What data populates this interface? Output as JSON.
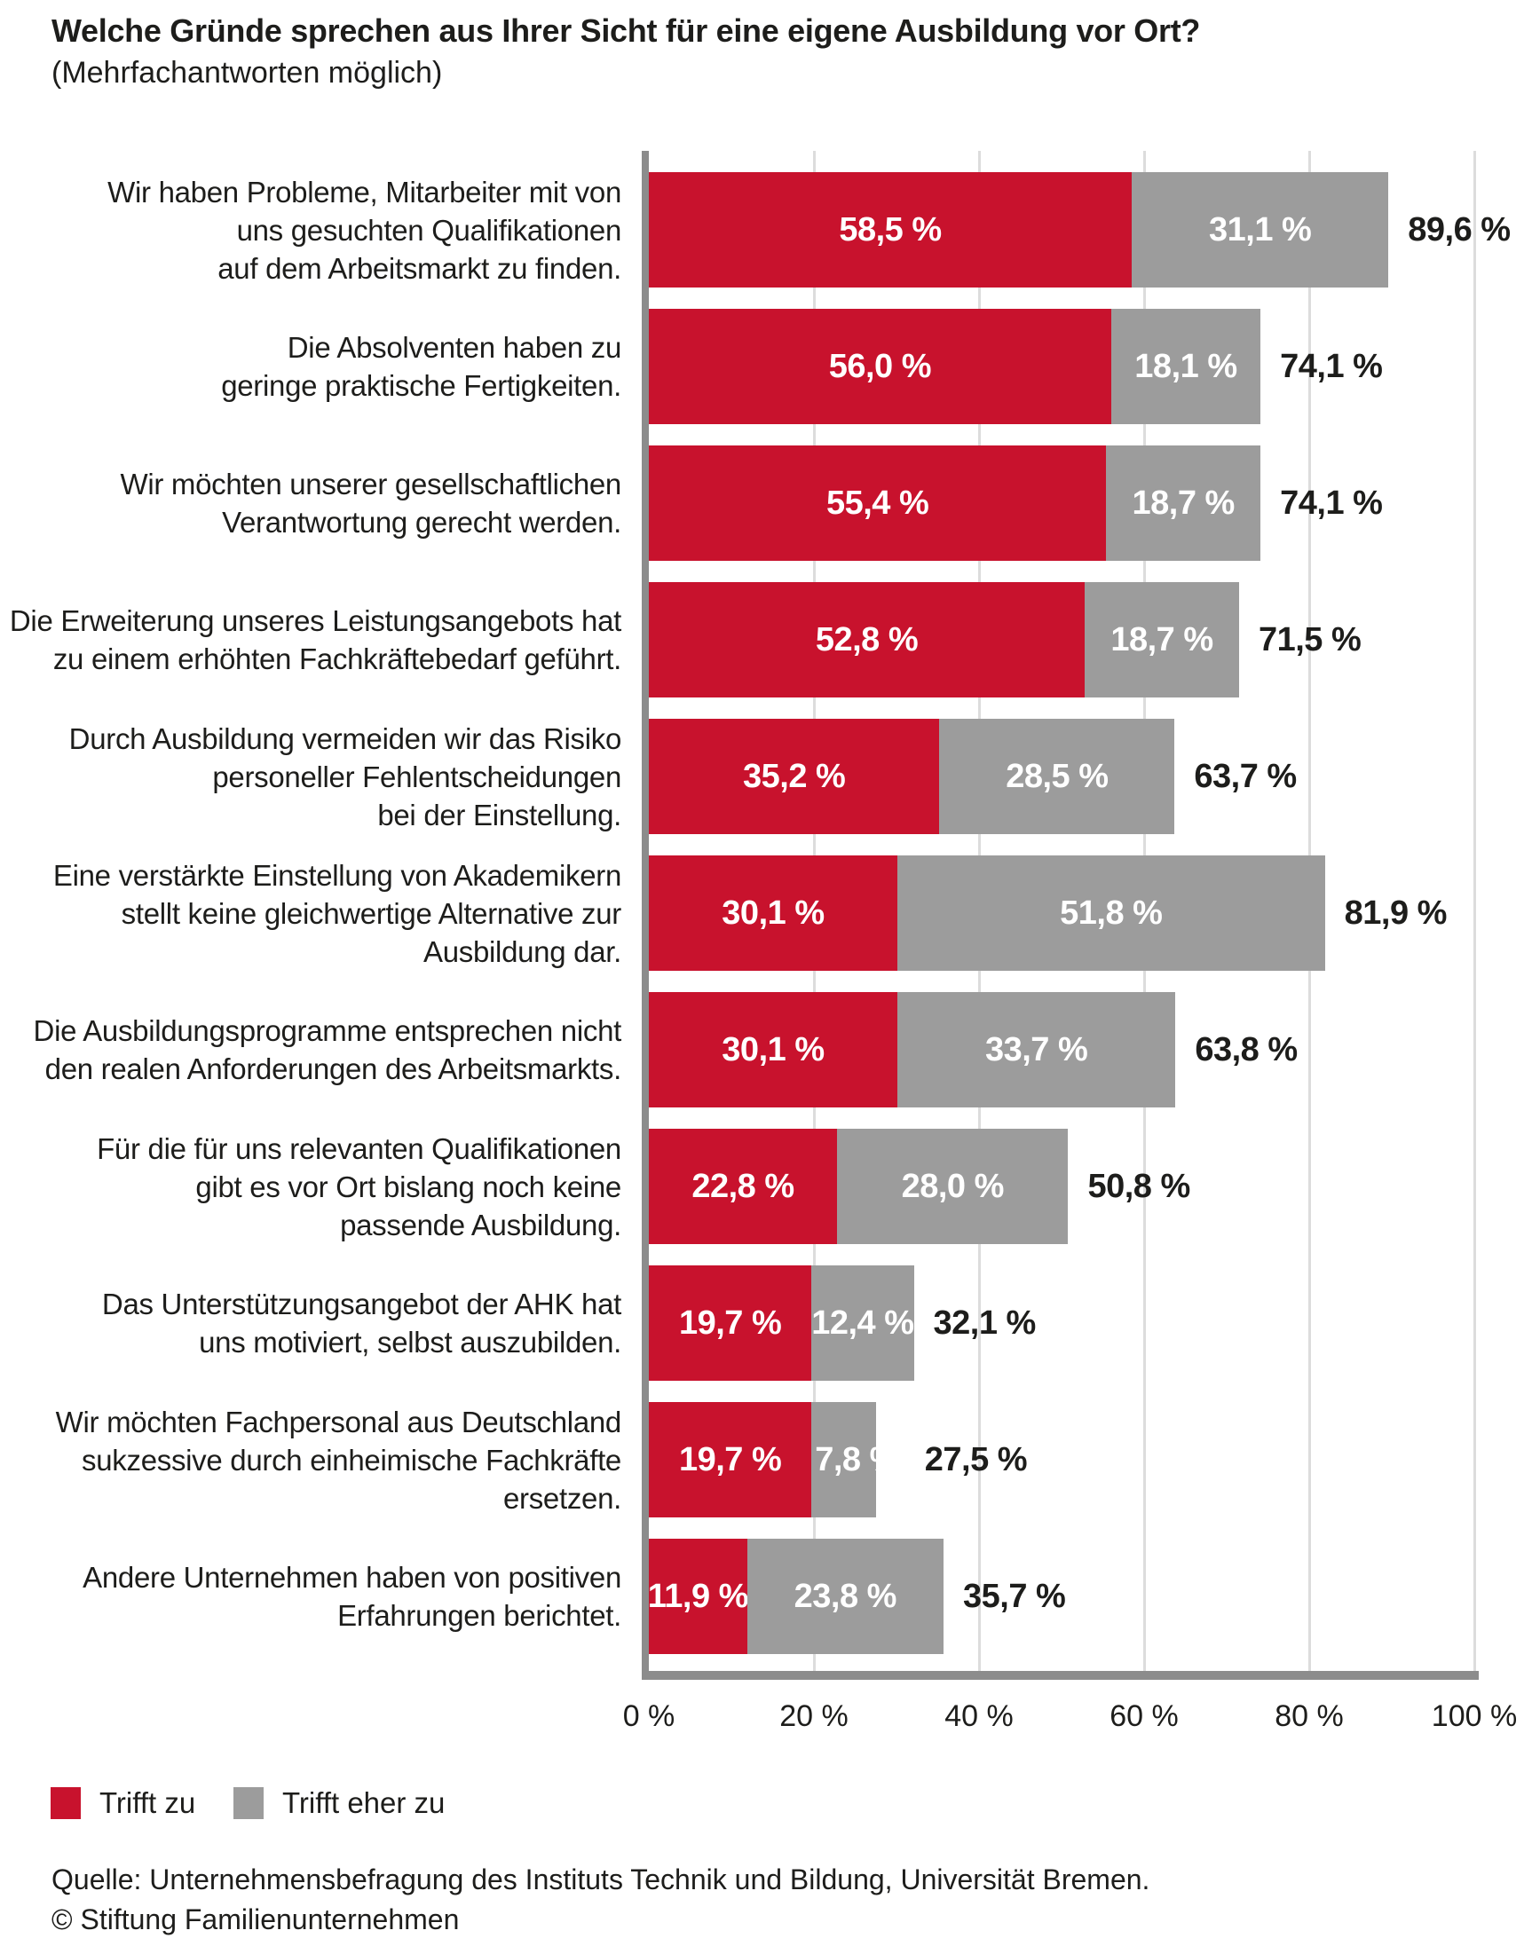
{
  "page": {
    "title": "Welche Gründe sprechen aus Ihrer Sicht für eine eigene Ausbildung vor Ort?",
    "subtitle": "(Mehrfachantworten möglich)",
    "source": "Quelle: Unternehmensbefragung des Instituts Technik und Bildung, Universität Bremen.\n© Stiftung Familienunternehmen"
  },
  "legend": [
    {
      "label": "Trifft zu",
      "color": "#c8122d"
    },
    {
      "label": "Trifft eher zu",
      "color": "#9c9c9c"
    }
  ],
  "colors": {
    "bar_red": "#c8122d",
    "bar_gray": "#9c9c9c",
    "axis": "#8c8c8c",
    "grid": "#dcdcdc",
    "text": "#1d1d1b",
    "value_text": "#ffffff"
  },
  "chart_data": {
    "type": "bar",
    "orientation": "horizontal",
    "stacked": true,
    "unit": "%",
    "xlim": [
      0,
      100
    ],
    "x_ticks": [
      "0 %",
      "20 %",
      "40 %",
      "60 %",
      "80 %",
      "100 %"
    ],
    "grid": true,
    "legend_position": "bottom",
    "categories": [
      "Wir haben Probleme, Mitarbeiter mit von\nuns gesuchten Qualifikationen\nauf dem Arbeitsmarkt zu finden.",
      "Die Absolventen haben zu\ngeringe praktische Fertigkeiten.",
      "Wir möchten unserer gesellschaftlichen\nVerantwortung gerecht werden.",
      "Die Erweiterung unseres Leistungsangebots hat\nzu einem erhöhten Fachkräftebedarf geführt.",
      "Durch Ausbildung vermeiden wir das Risiko\npersoneller Fehlentscheidungen\nbei der Einstellung.",
      "Eine verstärkte Einstellung von Akademikern\nstellt keine gleichwertige Alternative zur\nAusbildung dar.",
      "Die Ausbildungsprogramme entsprechen nicht\nden realen Anforderungen des Arbeitsmarkts.",
      "Für die für uns relevanten Qualifikationen\ngibt es vor Ort bislang noch keine\npassende Ausbildung.",
      "Das Unterstützungsangebot der AHK hat\nuns motiviert, selbst auszubilden.",
      "Wir möchten Fachpersonal aus Deutschland\nsukzessive durch einheimische Fachkräfte\nersetzen.",
      "Andere Unternehmen haben von positiven\nErfahrungen berichtet."
    ],
    "series": [
      {
        "name": "Trifft zu",
        "color": "#c8122d",
        "values": [
          58.5,
          56.0,
          55.4,
          52.8,
          35.2,
          30.1,
          30.1,
          22.8,
          19.7,
          19.7,
          11.9
        ]
      },
      {
        "name": "Trifft eher zu",
        "color": "#9c9c9c",
        "values": [
          31.1,
          18.1,
          18.7,
          18.7,
          28.5,
          51.8,
          33.7,
          28.0,
          12.4,
          7.8,
          23.8
        ]
      }
    ],
    "totals": [
      89.6,
      74.1,
      74.1,
      71.5,
      63.7,
      81.9,
      63.8,
      50.8,
      32.1,
      27.5,
      35.7
    ]
  },
  "layout_note": ""
}
